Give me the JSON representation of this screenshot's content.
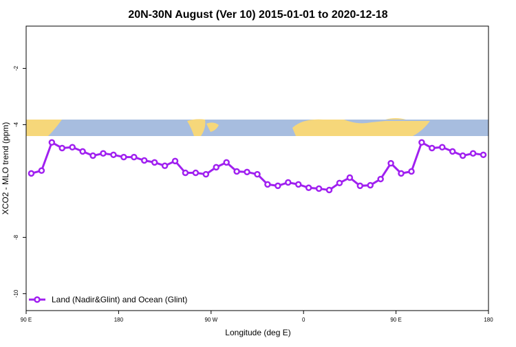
{
  "chart_data": {
    "type": "line",
    "title": "20N-30N August (Ver 10)   2015-01-01 to 2020-12-18",
    "x_label": "Longitude (deg E)",
    "y_label": "XCO2 - MLO trend (ppm)",
    "x": [
      95,
      105,
      115,
      125,
      135,
      145,
      155,
      165,
      175,
      185,
      195,
      205,
      215,
      225,
      235,
      245,
      255,
      265,
      275,
      285,
      295,
      305,
      315,
      325,
      335,
      345,
      355,
      365,
      375,
      385,
      395,
      405,
      415,
      425,
      435,
      445,
      455,
      465,
      475,
      485,
      495,
      505,
      515,
      525,
      535
    ],
    "series": [
      {
        "name": "Land (Nadir&Glint) and Ocean (Glint)",
        "color": "#a020f0",
        "values": [
          -5.73,
          -5.63,
          -4.63,
          -4.83,
          -4.8,
          -4.95,
          -5.1,
          -5.02,
          -5.07,
          -5.15,
          -5.15,
          -5.27,
          -5.34,
          -5.46,
          -5.29,
          -5.71,
          -5.71,
          -5.76,
          -5.51,
          -5.34,
          -5.66,
          -5.68,
          -5.76,
          -6.12,
          -6.17,
          -6.05,
          -6.12,
          -6.24,
          -6.27,
          -6.32,
          -6.07,
          -5.88,
          -6.17,
          -6.15,
          -5.93,
          -5.37,
          -5.73,
          -5.66,
          -4.63,
          -4.83,
          -4.8,
          -4.95,
          -5.1,
          -5.02,
          -5.07
        ]
      }
    ],
    "xlim": [
      90,
      540
    ],
    "xticks": [
      {
        "value": 90,
        "label": "90 E"
      },
      {
        "value": 180,
        "label": "180"
      },
      {
        "value": 270,
        "label": "90 W"
      },
      {
        "value": 360,
        "label": "0"
      },
      {
        "value": 450,
        "label": "90 E"
      },
      {
        "value": 540,
        "label": "180"
      }
    ],
    "ylim": [
      -10.6,
      -0.5
    ],
    "yticks": [
      -10,
      -8,
      -4,
      -2
    ],
    "legend": "bottom-left"
  }
}
